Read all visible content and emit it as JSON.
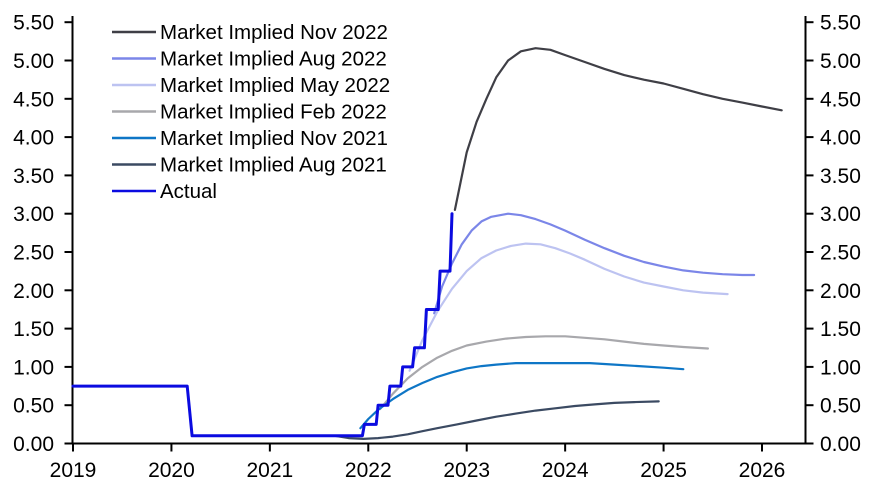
{
  "chart_data": {
    "type": "line",
    "title": "",
    "xlabel": "",
    "ylabel": "",
    "ylim": [
      0,
      5.5
    ],
    "xlim": [
      2019,
      2026.45
    ],
    "grid": false,
    "legend_position": "top-left",
    "axis_color": "#000000",
    "y_axis": {
      "side": "both",
      "tick_labels": [
        "0.00",
        "0.50",
        "1.00",
        "1.50",
        "2.00",
        "2.50",
        "3.00",
        "3.50",
        "4.00",
        "4.50",
        "5.00",
        "5.50"
      ],
      "tick_values": [
        0,
        0.5,
        1.0,
        1.5,
        2.0,
        2.5,
        3.0,
        3.5,
        4.0,
        4.5,
        5.0,
        5.5
      ]
    },
    "x_axis": {
      "tick_labels": [
        "2019",
        "2020",
        "2021",
        "2022",
        "2023",
        "2024",
        "2025",
        "2026"
      ],
      "tick_values": [
        2019,
        2020,
        2021,
        2022,
        2023,
        2024,
        2025,
        2026
      ]
    },
    "series": [
      {
        "name": "Market Implied Nov 2022",
        "color": "#3f3f46",
        "width": 2.2,
        "points": [
          [
            2022.88,
            3.05
          ],
          [
            2023.0,
            3.8
          ],
          [
            2023.1,
            4.2
          ],
          [
            2023.2,
            4.5
          ],
          [
            2023.3,
            4.78
          ],
          [
            2023.42,
            5.0
          ],
          [
            2023.55,
            5.12
          ],
          [
            2023.7,
            5.16
          ],
          [
            2023.85,
            5.14
          ],
          [
            2024.0,
            5.07
          ],
          [
            2024.2,
            4.98
          ],
          [
            2024.4,
            4.89
          ],
          [
            2024.6,
            4.81
          ],
          [
            2024.8,
            4.75
          ],
          [
            2025.0,
            4.7
          ],
          [
            2025.2,
            4.63
          ],
          [
            2025.4,
            4.56
          ],
          [
            2025.6,
            4.5
          ],
          [
            2025.8,
            4.45
          ],
          [
            2026.0,
            4.4
          ],
          [
            2026.2,
            4.35
          ]
        ]
      },
      {
        "name": "Market Implied Aug 2022",
        "color": "#7b86e8",
        "width": 2.2,
        "points": [
          [
            2022.67,
            1.7
          ],
          [
            2022.75,
            2.05
          ],
          [
            2022.85,
            2.35
          ],
          [
            2022.95,
            2.6
          ],
          [
            2023.05,
            2.78
          ],
          [
            2023.15,
            2.9
          ],
          [
            2023.25,
            2.96
          ],
          [
            2023.42,
            3.0
          ],
          [
            2023.55,
            2.98
          ],
          [
            2023.7,
            2.93
          ],
          [
            2023.85,
            2.86
          ],
          [
            2024.0,
            2.78
          ],
          [
            2024.2,
            2.66
          ],
          [
            2024.4,
            2.55
          ],
          [
            2024.6,
            2.45
          ],
          [
            2024.8,
            2.37
          ],
          [
            2025.0,
            2.31
          ],
          [
            2025.2,
            2.26
          ],
          [
            2025.4,
            2.23
          ],
          [
            2025.6,
            2.21
          ],
          [
            2025.8,
            2.2
          ],
          [
            2025.92,
            2.2
          ]
        ]
      },
      {
        "name": "Market Implied May 2022",
        "color": "#bdc3f1",
        "width": 2.2,
        "points": [
          [
            2022.42,
            0.95
          ],
          [
            2022.55,
            1.35
          ],
          [
            2022.7,
            1.72
          ],
          [
            2022.85,
            2.02
          ],
          [
            2023.0,
            2.25
          ],
          [
            2023.15,
            2.42
          ],
          [
            2023.3,
            2.52
          ],
          [
            2023.45,
            2.58
          ],
          [
            2023.6,
            2.61
          ],
          [
            2023.75,
            2.6
          ],
          [
            2023.9,
            2.55
          ],
          [
            2024.05,
            2.48
          ],
          [
            2024.2,
            2.4
          ],
          [
            2024.4,
            2.28
          ],
          [
            2024.6,
            2.18
          ],
          [
            2024.8,
            2.1
          ],
          [
            2025.0,
            2.05
          ],
          [
            2025.2,
            2.0
          ],
          [
            2025.4,
            1.97
          ],
          [
            2025.65,
            1.95
          ]
        ]
      },
      {
        "name": "Market Implied Feb 2022",
        "color": "#a8a8ac",
        "width": 2.2,
        "points": [
          [
            2022.12,
            0.45
          ],
          [
            2022.25,
            0.65
          ],
          [
            2022.4,
            0.85
          ],
          [
            2022.55,
            1.0
          ],
          [
            2022.7,
            1.12
          ],
          [
            2022.85,
            1.21
          ],
          [
            2023.0,
            1.28
          ],
          [
            2023.2,
            1.33
          ],
          [
            2023.4,
            1.37
          ],
          [
            2023.6,
            1.39
          ],
          [
            2023.8,
            1.4
          ],
          [
            2024.0,
            1.4
          ],
          [
            2024.2,
            1.38
          ],
          [
            2024.4,
            1.36
          ],
          [
            2024.6,
            1.33
          ],
          [
            2024.8,
            1.3
          ],
          [
            2025.0,
            1.28
          ],
          [
            2025.2,
            1.26
          ],
          [
            2025.45,
            1.24
          ]
        ]
      },
      {
        "name": "Market Implied Nov 2021",
        "color": "#0e76c6",
        "width": 2.2,
        "points": [
          [
            2021.92,
            0.2
          ],
          [
            2022.0,
            0.32
          ],
          [
            2022.1,
            0.44
          ],
          [
            2022.25,
            0.58
          ],
          [
            2022.4,
            0.7
          ],
          [
            2022.55,
            0.79
          ],
          [
            2022.7,
            0.87
          ],
          [
            2022.85,
            0.93
          ],
          [
            2023.0,
            0.98
          ],
          [
            2023.15,
            1.01
          ],
          [
            2023.3,
            1.03
          ],
          [
            2023.5,
            1.05
          ],
          [
            2023.75,
            1.05
          ],
          [
            2024.0,
            1.05
          ],
          [
            2024.25,
            1.05
          ],
          [
            2024.5,
            1.03
          ],
          [
            2024.75,
            1.01
          ],
          [
            2025.0,
            0.99
          ],
          [
            2025.2,
            0.97
          ]
        ]
      },
      {
        "name": "Market Implied Aug 2021",
        "color": "#3b4a62",
        "width": 2.2,
        "points": [
          [
            2021.66,
            0.1
          ],
          [
            2021.8,
            0.07
          ],
          [
            2021.95,
            0.06
          ],
          [
            2022.1,
            0.07
          ],
          [
            2022.25,
            0.09
          ],
          [
            2022.4,
            0.12
          ],
          [
            2022.55,
            0.16
          ],
          [
            2022.7,
            0.2
          ],
          [
            2022.9,
            0.25
          ],
          [
            2023.1,
            0.3
          ],
          [
            2023.3,
            0.35
          ],
          [
            2023.5,
            0.39
          ],
          [
            2023.7,
            0.43
          ],
          [
            2023.9,
            0.46
          ],
          [
            2024.1,
            0.49
          ],
          [
            2024.3,
            0.51
          ],
          [
            2024.5,
            0.53
          ],
          [
            2024.7,
            0.54
          ],
          [
            2024.95,
            0.55
          ]
        ]
      },
      {
        "name": "Actual",
        "color": "#0b0be0",
        "width": 3,
        "points": [
          [
            2019.0,
            0.75
          ],
          [
            2020.16,
            0.75
          ],
          [
            2020.21,
            0.1
          ],
          [
            2021.94,
            0.1
          ],
          [
            2021.96,
            0.25
          ],
          [
            2022.08,
            0.25
          ],
          [
            2022.1,
            0.5
          ],
          [
            2022.2,
            0.5
          ],
          [
            2022.22,
            0.75
          ],
          [
            2022.33,
            0.75
          ],
          [
            2022.35,
            1.0
          ],
          [
            2022.45,
            1.0
          ],
          [
            2022.47,
            1.25
          ],
          [
            2022.57,
            1.25
          ],
          [
            2022.59,
            1.75
          ],
          [
            2022.71,
            1.75
          ],
          [
            2022.73,
            2.25
          ],
          [
            2022.83,
            2.25
          ],
          [
            2022.85,
            3.0
          ]
        ]
      }
    ]
  }
}
